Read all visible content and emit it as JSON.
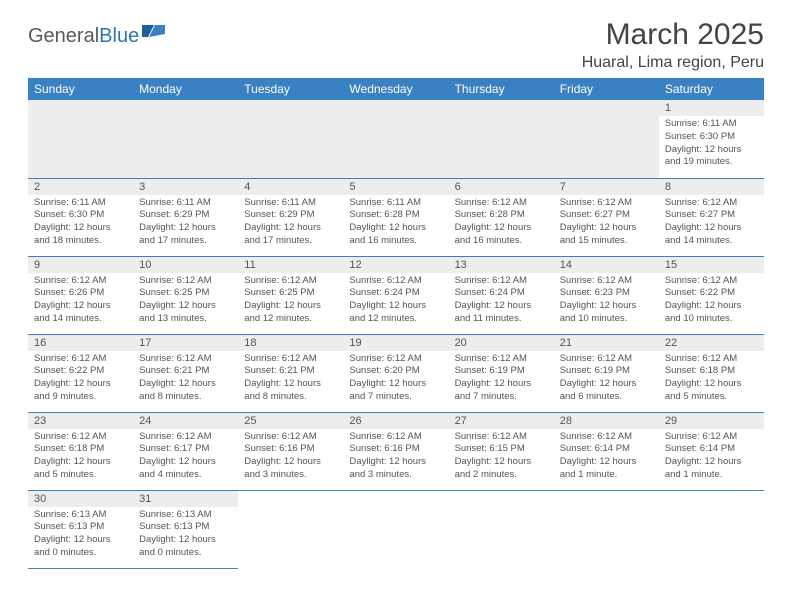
{
  "brand": {
    "part1": "General",
    "part2": "Blue"
  },
  "title": "March 2025",
  "location": "Huaral, Lima region, Peru",
  "colors": {
    "header_bg": "#3a81c4",
    "header_fg": "#ffffff",
    "daynum_bg": "#ededed",
    "border": "#3a81c4",
    "text": "#555555",
    "brand_gray": "#5a5a5a",
    "brand_blue": "#2e74b5"
  },
  "weekdays": [
    "Sunday",
    "Monday",
    "Tuesday",
    "Wednesday",
    "Thursday",
    "Friday",
    "Saturday"
  ],
  "leading_blanks": 6,
  "days": [
    {
      "n": "1",
      "rise": "6:11 AM",
      "set": "6:30 PM",
      "dl": "12 hours and 19 minutes."
    },
    {
      "n": "2",
      "rise": "6:11 AM",
      "set": "6:30 PM",
      "dl": "12 hours and 18 minutes."
    },
    {
      "n": "3",
      "rise": "6:11 AM",
      "set": "6:29 PM",
      "dl": "12 hours and 17 minutes."
    },
    {
      "n": "4",
      "rise": "6:11 AM",
      "set": "6:29 PM",
      "dl": "12 hours and 17 minutes."
    },
    {
      "n": "5",
      "rise": "6:11 AM",
      "set": "6:28 PM",
      "dl": "12 hours and 16 minutes."
    },
    {
      "n": "6",
      "rise": "6:12 AM",
      "set": "6:28 PM",
      "dl": "12 hours and 16 minutes."
    },
    {
      "n": "7",
      "rise": "6:12 AM",
      "set": "6:27 PM",
      "dl": "12 hours and 15 minutes."
    },
    {
      "n": "8",
      "rise": "6:12 AM",
      "set": "6:27 PM",
      "dl": "12 hours and 14 minutes."
    },
    {
      "n": "9",
      "rise": "6:12 AM",
      "set": "6:26 PM",
      "dl": "12 hours and 14 minutes."
    },
    {
      "n": "10",
      "rise": "6:12 AM",
      "set": "6:25 PM",
      "dl": "12 hours and 13 minutes."
    },
    {
      "n": "11",
      "rise": "6:12 AM",
      "set": "6:25 PM",
      "dl": "12 hours and 12 minutes."
    },
    {
      "n": "12",
      "rise": "6:12 AM",
      "set": "6:24 PM",
      "dl": "12 hours and 12 minutes."
    },
    {
      "n": "13",
      "rise": "6:12 AM",
      "set": "6:24 PM",
      "dl": "12 hours and 11 minutes."
    },
    {
      "n": "14",
      "rise": "6:12 AM",
      "set": "6:23 PM",
      "dl": "12 hours and 10 minutes."
    },
    {
      "n": "15",
      "rise": "6:12 AM",
      "set": "6:22 PM",
      "dl": "12 hours and 10 minutes."
    },
    {
      "n": "16",
      "rise": "6:12 AM",
      "set": "6:22 PM",
      "dl": "12 hours and 9 minutes."
    },
    {
      "n": "17",
      "rise": "6:12 AM",
      "set": "6:21 PM",
      "dl": "12 hours and 8 minutes."
    },
    {
      "n": "18",
      "rise": "6:12 AM",
      "set": "6:21 PM",
      "dl": "12 hours and 8 minutes."
    },
    {
      "n": "19",
      "rise": "6:12 AM",
      "set": "6:20 PM",
      "dl": "12 hours and 7 minutes."
    },
    {
      "n": "20",
      "rise": "6:12 AM",
      "set": "6:19 PM",
      "dl": "12 hours and 7 minutes."
    },
    {
      "n": "21",
      "rise": "6:12 AM",
      "set": "6:19 PM",
      "dl": "12 hours and 6 minutes."
    },
    {
      "n": "22",
      "rise": "6:12 AM",
      "set": "6:18 PM",
      "dl": "12 hours and 5 minutes."
    },
    {
      "n": "23",
      "rise": "6:12 AM",
      "set": "6:18 PM",
      "dl": "12 hours and 5 minutes."
    },
    {
      "n": "24",
      "rise": "6:12 AM",
      "set": "6:17 PM",
      "dl": "12 hours and 4 minutes."
    },
    {
      "n": "25",
      "rise": "6:12 AM",
      "set": "6:16 PM",
      "dl": "12 hours and 3 minutes."
    },
    {
      "n": "26",
      "rise": "6:12 AM",
      "set": "6:16 PM",
      "dl": "12 hours and 3 minutes."
    },
    {
      "n": "27",
      "rise": "6:12 AM",
      "set": "6:15 PM",
      "dl": "12 hours and 2 minutes."
    },
    {
      "n": "28",
      "rise": "6:12 AM",
      "set": "6:14 PM",
      "dl": "12 hours and 1 minute."
    },
    {
      "n": "29",
      "rise": "6:12 AM",
      "set": "6:14 PM",
      "dl": "12 hours and 1 minute."
    },
    {
      "n": "30",
      "rise": "6:13 AM",
      "set": "6:13 PM",
      "dl": "12 hours and 0 minutes."
    },
    {
      "n": "31",
      "rise": "6:13 AM",
      "set": "6:13 PM",
      "dl": "12 hours and 0 minutes."
    }
  ],
  "labels": {
    "sunrise": "Sunrise:",
    "sunset": "Sunset:",
    "daylight": "Daylight:"
  }
}
